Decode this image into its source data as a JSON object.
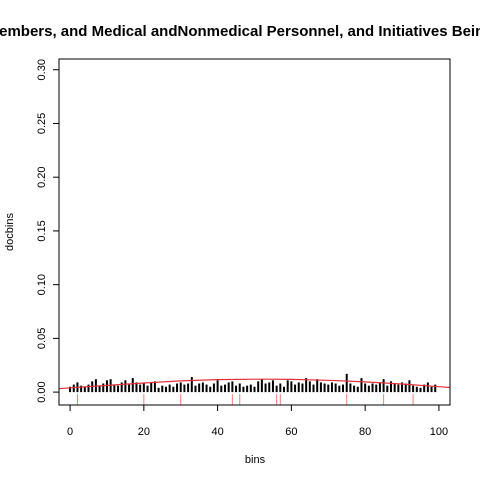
{
  "chart_data": {
    "type": "bar",
    "title": "Members, and Medical andNonmedical Personnel, and Initiatives Being",
    "xlabel": "bins",
    "ylabel": "docbins",
    "xlim": [
      -3,
      103
    ],
    "ylim": [
      -0.012,
      0.31
    ],
    "x_ticks": [
      0,
      20,
      40,
      60,
      80,
      100
    ],
    "y_ticks": [
      0.0,
      0.05,
      0.1,
      0.15,
      0.2,
      0.25,
      0.3
    ],
    "x_tick_labels": [
      "0",
      "20",
      "40",
      "60",
      "80",
      "100"
    ],
    "y_tick_labels": [
      "0.00",
      "0.05",
      "0.10",
      "0.15",
      "0.20",
      "0.25",
      "0.30"
    ],
    "bar_color": "#000000",
    "curve_color": "#e0303a",
    "rug_color": "#f08080",
    "series": [
      {
        "x": [
          0,
          1,
          2,
          3,
          4,
          5,
          6,
          7,
          8,
          9,
          10,
          11,
          12,
          13,
          14,
          15,
          16,
          17,
          18,
          19,
          20,
          21,
          22,
          23,
          24,
          25,
          26,
          27,
          28,
          29,
          30,
          31,
          32,
          33,
          34,
          35,
          36,
          37,
          38,
          39,
          40,
          41,
          42,
          43,
          44,
          45,
          46,
          47,
          48,
          49,
          50,
          51,
          52,
          53,
          54,
          55,
          56,
          57,
          58,
          59,
          60,
          61,
          62,
          63,
          64,
          65,
          66,
          67,
          68,
          69,
          70,
          71,
          72,
          73,
          74,
          75,
          76,
          77,
          78,
          79,
          80,
          81,
          82,
          83,
          84,
          85,
          86,
          87,
          88,
          89,
          90,
          91,
          92,
          93,
          94,
          95,
          96,
          97,
          98,
          99
        ],
        "values": [
          0.005,
          0.007,
          0.009,
          0.006,
          0.005,
          0.007,
          0.01,
          0.012,
          0.006,
          0.008,
          0.011,
          0.012,
          0.007,
          0.006,
          0.009,
          0.011,
          0.007,
          0.013,
          0.009,
          0.007,
          0.008,
          0.006,
          0.009,
          0.01,
          0.004,
          0.006,
          0.005,
          0.007,
          0.005,
          0.008,
          0.009,
          0.007,
          0.008,
          0.014,
          0.006,
          0.008,
          0.009,
          0.007,
          0.005,
          0.008,
          0.011,
          0.006,
          0.007,
          0.009,
          0.01,
          0.006,
          0.008,
          0.005,
          0.006,
          0.007,
          0.005,
          0.01,
          0.012,
          0.008,
          0.009,
          0.011,
          0.006,
          0.008,
          0.005,
          0.011,
          0.01,
          0.007,
          0.009,
          0.008,
          0.013,
          0.01,
          0.007,
          0.012,
          0.009,
          0.008,
          0.007,
          0.009,
          0.008,
          0.006,
          0.007,
          0.017,
          0.008,
          0.006,
          0.005,
          0.013,
          0.008,
          0.006,
          0.008,
          0.007,
          0.009,
          0.012,
          0.006,
          0.01,
          0.008,
          0.007,
          0.009,
          0.008,
          0.011,
          0.006,
          0.005,
          0.004,
          0.007,
          0.009,
          0.005,
          0.007
        ]
      }
    ],
    "curve": {
      "x": [
        -3,
        0,
        10,
        20,
        30,
        40,
        50,
        55,
        60,
        70,
        80,
        90,
        100,
        103
      ],
      "y": [
        0.0032,
        0.004,
        0.0062,
        0.0085,
        0.0104,
        0.0116,
        0.012,
        0.012,
        0.0118,
        0.011,
        0.0095,
        0.0075,
        0.005,
        0.0043
      ]
    },
    "rug": [
      2,
      20,
      30,
      44,
      46,
      56,
      57,
      75,
      85,
      93
    ]
  }
}
